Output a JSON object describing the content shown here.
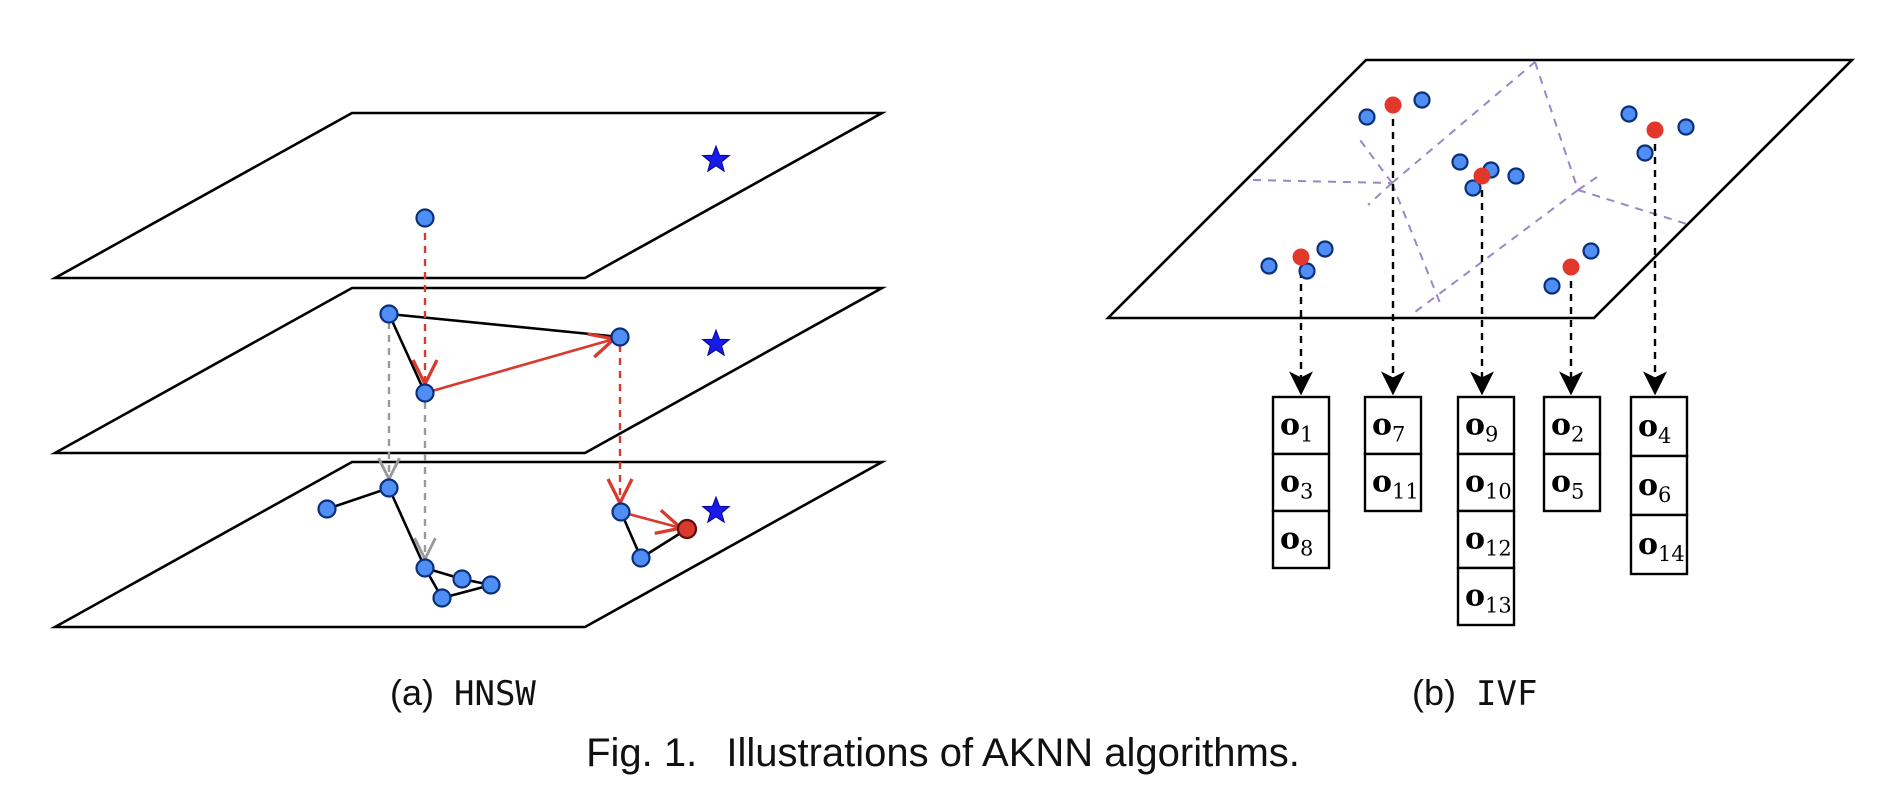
{
  "subfigures": [
    {
      "label": "(a)",
      "method": "HNSW"
    },
    {
      "label": "(b)",
      "method": "IVF"
    }
  ],
  "figure_caption": {
    "prefix": "Fig. 1.",
    "text": "Illustrations of AKNN algorithms."
  },
  "ivf": {
    "lists": [
      {
        "items": [
          {
            "base": "o",
            "sub": "1"
          },
          {
            "base": "o",
            "sub": "3"
          },
          {
            "base": "o",
            "sub": "8"
          }
        ]
      },
      {
        "items": [
          {
            "base": "o",
            "sub": "7"
          },
          {
            "base": "o",
            "sub": "11"
          }
        ]
      },
      {
        "items": [
          {
            "base": "o",
            "sub": "9"
          },
          {
            "base": "o",
            "sub": "10"
          },
          {
            "base": "o",
            "sub": "12"
          },
          {
            "base": "o",
            "sub": "13"
          }
        ]
      },
      {
        "items": [
          {
            "base": "o",
            "sub": "2"
          },
          {
            "base": "o",
            "sub": "5"
          }
        ]
      },
      {
        "items": [
          {
            "base": "o",
            "sub": "4"
          },
          {
            "base": "o",
            "sub": "6"
          },
          {
            "base": "o",
            "sub": "14"
          }
        ]
      }
    ]
  },
  "colors": {
    "node": "#4f8ef5",
    "target_node": "#d93a2e",
    "centroid": "#e2382c",
    "search_path": "#d93a2e",
    "layer_descent": "#9a9a9a",
    "query_star": "#1a1ae6",
    "voronoi": "#9b87c4"
  },
  "icons": {
    "query": "star-icon"
  }
}
